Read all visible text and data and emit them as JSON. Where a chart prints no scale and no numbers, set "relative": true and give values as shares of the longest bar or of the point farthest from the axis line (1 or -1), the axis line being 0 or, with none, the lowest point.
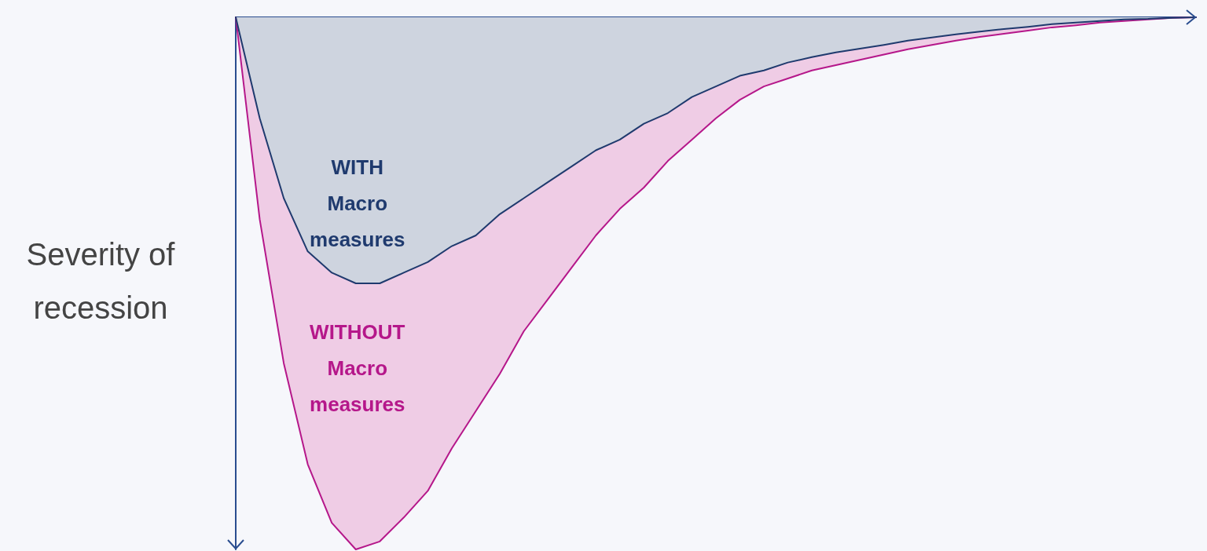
{
  "chart_data": {
    "type": "area",
    "relative": true,
    "ylabel": "Severity of recession",
    "legend": false,
    "grid": false,
    "categories": [
      null,
      null,
      null,
      null,
      null,
      null,
      null,
      null,
      null,
      null,
      null,
      null,
      null,
      null,
      null,
      null,
      null,
      null,
      null,
      null,
      null,
      null,
      null,
      null,
      null,
      null,
      null,
      null,
      null,
      null,
      null,
      null,
      null,
      null,
      null,
      null,
      null,
      null,
      null,
      null,
      null
    ],
    "series": [
      {
        "name": "WITHOUT Macro measures",
        "color": "#b5178a",
        "values": [
          0,
          -0.38,
          -0.65,
          -0.84,
          -0.95,
          -1,
          -0.985,
          -0.94,
          -0.89,
          -0.81,
          -0.74,
          -0.67,
          -0.59,
          -0.53,
          -0.47,
          -0.41,
          -0.36,
          -0.32,
          -0.27,
          -0.23,
          -0.19,
          -0.155,
          -0.13,
          -0.115,
          -0.1,
          -0.09,
          -0.08,
          -0.07,
          -0.06,
          -0.052,
          -0.044,
          -0.037,
          -0.031,
          -0.025,
          -0.019,
          -0.015,
          -0.01,
          -0.007,
          -0.004,
          -0.001,
          0
        ]
      },
      {
        "name": "WITH Macro measures",
        "color": "#1f3a6e",
        "values": [
          0,
          -0.19,
          -0.34,
          -0.44,
          -0.48,
          -0.5,
          -0.5,
          -0.48,
          -0.46,
          -0.43,
          -0.41,
          -0.37,
          -0.34,
          -0.31,
          -0.28,
          -0.25,
          -0.23,
          -0.2,
          -0.18,
          -0.15,
          -0.13,
          -0.11,
          -0.1,
          -0.085,
          -0.075,
          -0.066,
          -0.059,
          -0.052,
          -0.044,
          -0.038,
          -0.032,
          -0.027,
          -0.022,
          -0.018,
          -0.013,
          -0.01,
          -0.007,
          -0.004,
          -0.003,
          -0.001,
          0
        ]
      }
    ]
  }
}
